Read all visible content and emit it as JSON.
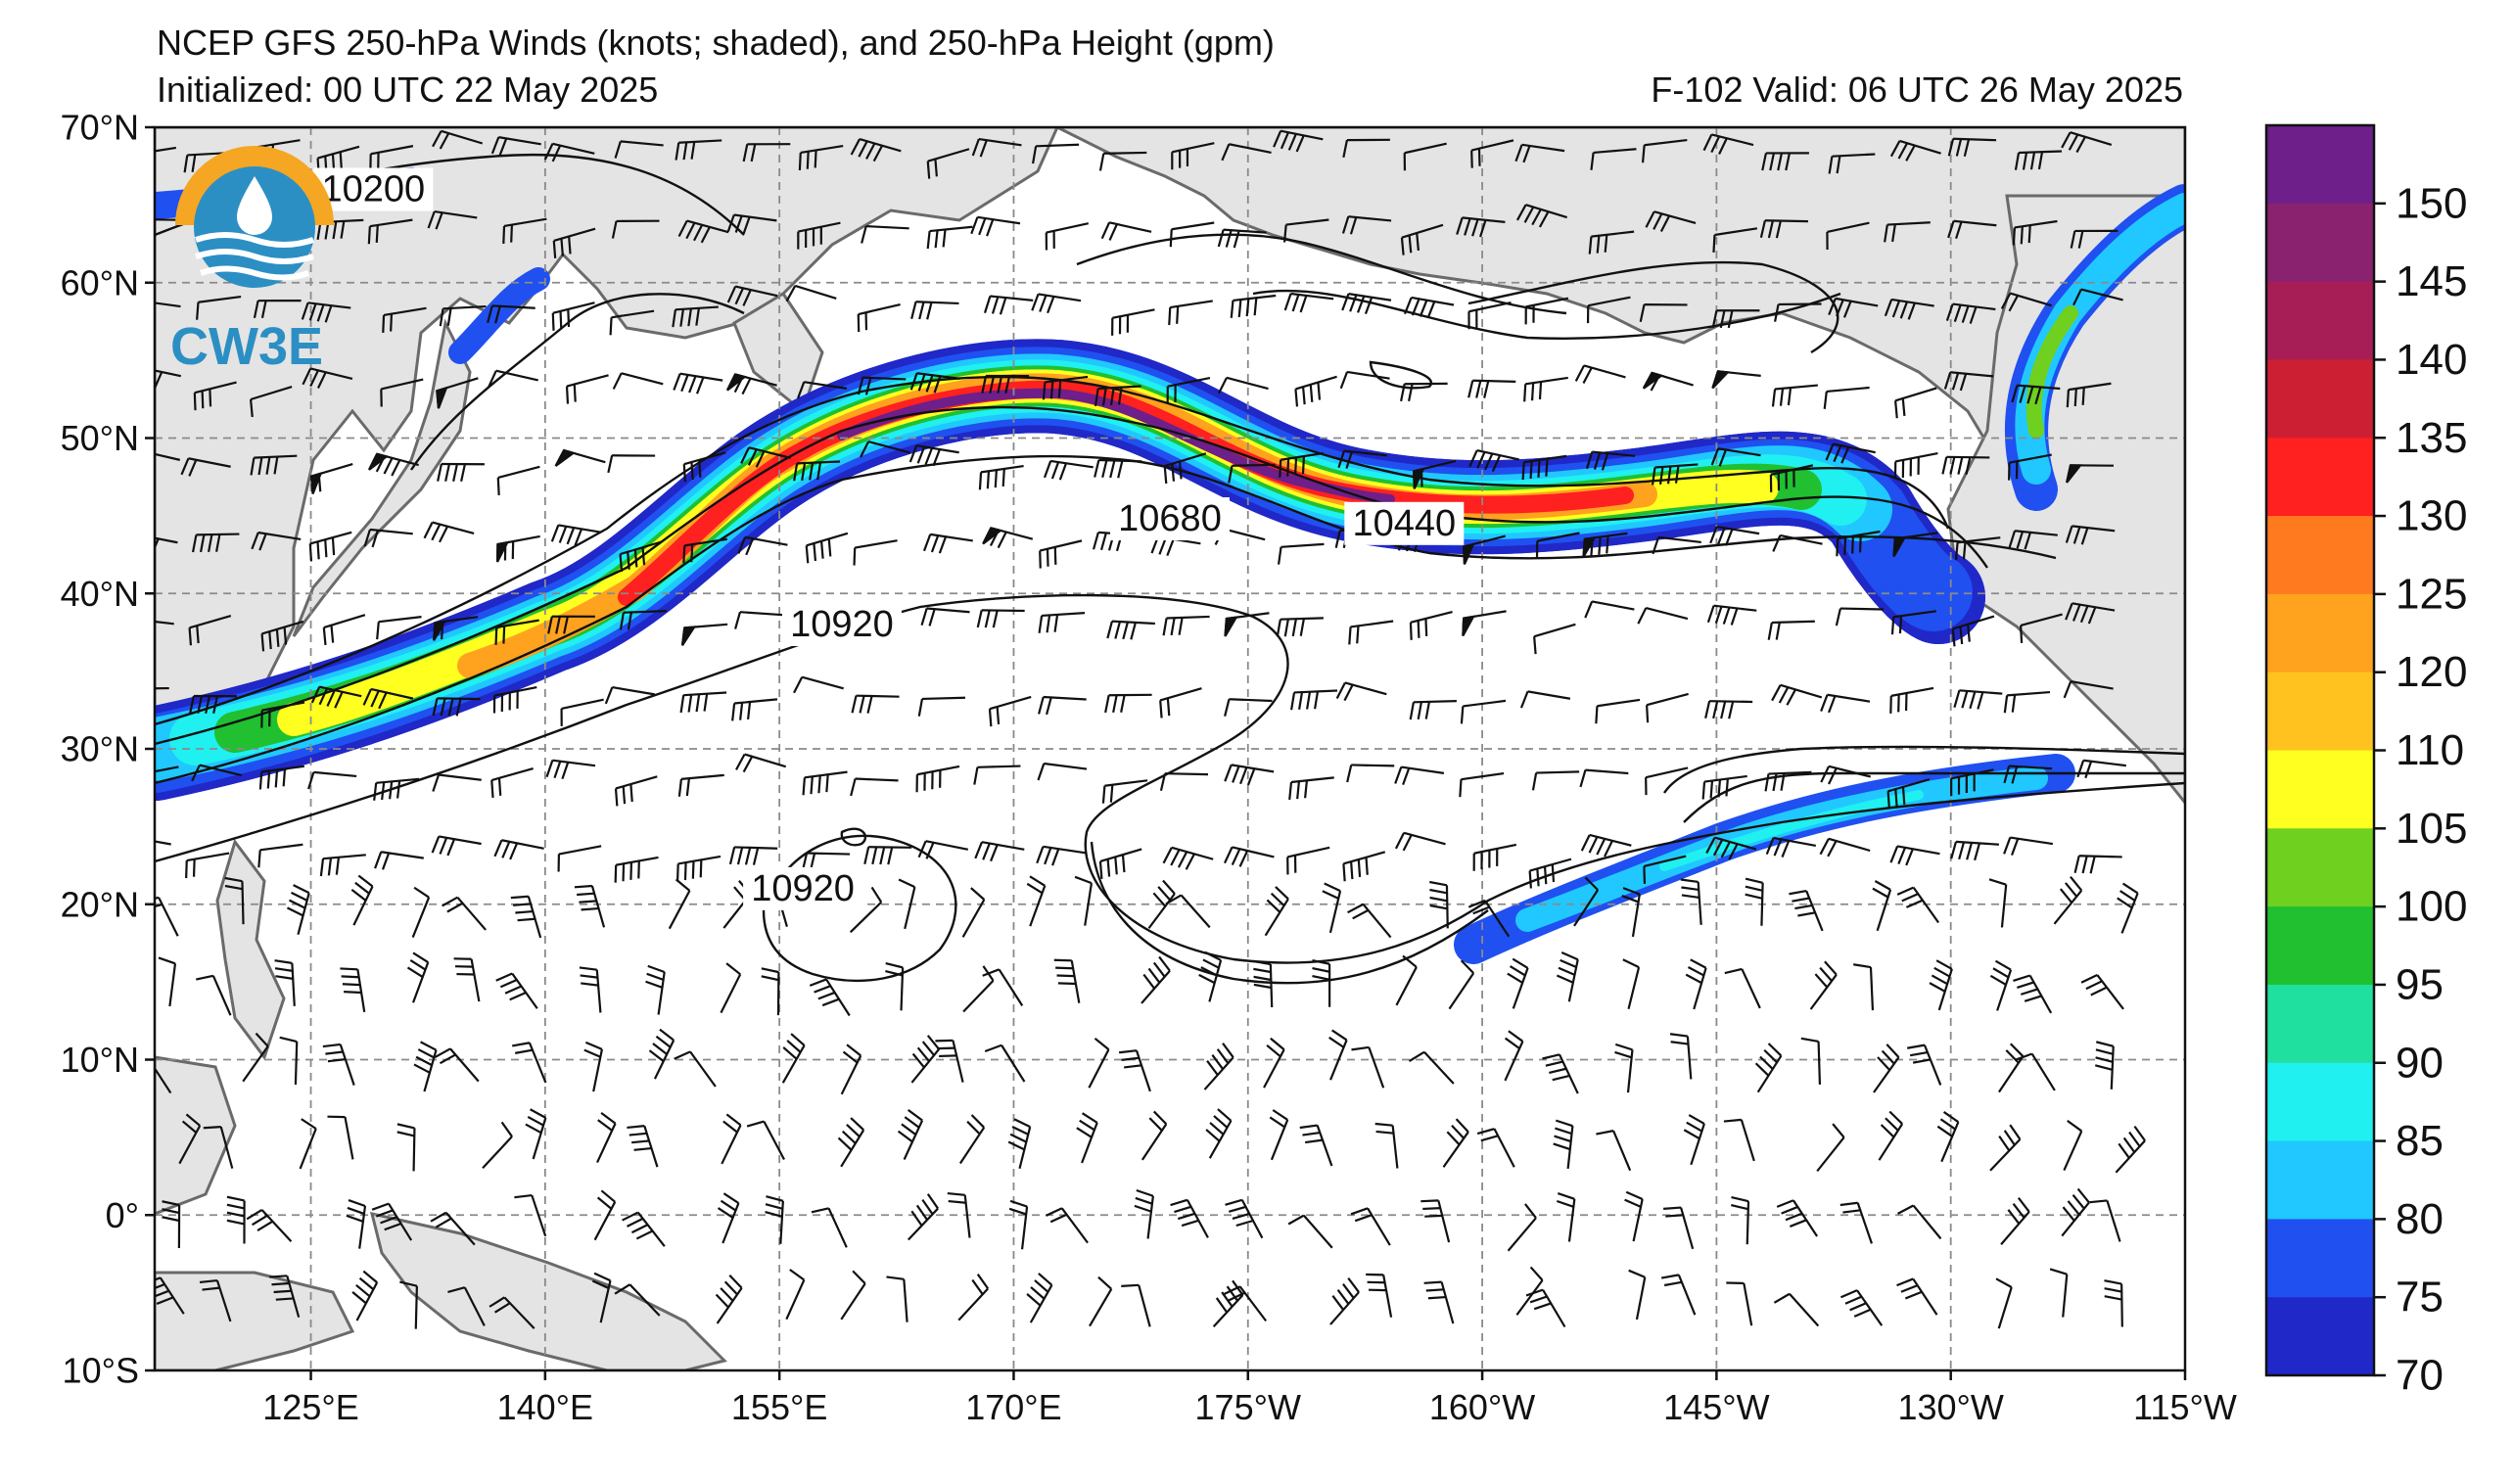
{
  "title": {
    "line1": "NCEP GFS 250-hPa Winds (knots; shaded), and 250-hPa Height (gpm)",
    "init": "Initialized: 00 UTC 22 May 2025",
    "valid": "F-102  Valid: 06 UTC 26 May 2025"
  },
  "logo": {
    "text": "CW3E",
    "color": "#2b8fc4",
    "accent": "#f5a623"
  },
  "axes": {
    "lat_labels": [
      "70°N",
      "60°N",
      "50°N",
      "40°N",
      "30°N",
      "20°N",
      "10°N",
      "0°",
      "10°S"
    ],
    "lat_values": [
      70,
      60,
      50,
      40,
      30,
      20,
      10,
      0,
      -10
    ],
    "lon_labels": [
      "125°E",
      "140°E",
      "155°E",
      "170°E",
      "175°W",
      "160°W",
      "145°W",
      "130°W",
      "115°W"
    ],
    "lon_values": [
      125,
      140,
      155,
      170,
      185,
      200,
      215,
      230,
      245
    ],
    "lon_range": [
      115,
      245
    ],
    "lat_range": [
      -10,
      70
    ],
    "grid": true
  },
  "contours": {
    "labels": [
      {
        "text": "10200",
        "lon": 129,
        "lat": 66
      },
      {
        "text": "10680",
        "lon": 180,
        "lat": 44.8
      },
      {
        "text": "10440",
        "lon": 195,
        "lat": 44.5
      },
      {
        "text": "10920",
        "lon": 159,
        "lat": 38
      },
      {
        "text": "10920",
        "lon": 156.5,
        "lat": 21
      }
    ]
  },
  "colorbar": {
    "ticks": [
      "150",
      "145",
      "140",
      "135",
      "130",
      "125",
      "120",
      "110",
      "105",
      "100",
      "95",
      "90",
      "85",
      "80",
      "75",
      "70"
    ],
    "colors": [
      "#6e1f8a",
      "#8a2270",
      "#a61e55",
      "#cc1f33",
      "#ff2020",
      "#ff7a1e",
      "#ffa21e",
      "#ffc21e",
      "#ffff20",
      "#70d020",
      "#20c030",
      "#20e0a0",
      "#20f0f0",
      "#20c8ff",
      "#2050f0",
      "#2028c8"
    ]
  }
}
